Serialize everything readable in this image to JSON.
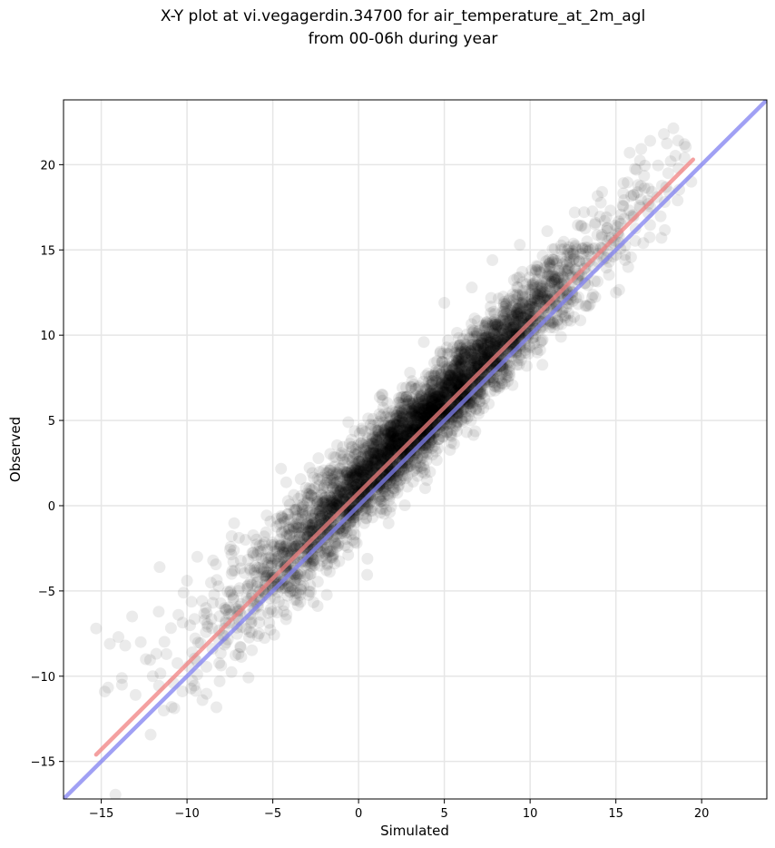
{
  "chart_data": {
    "type": "scatter",
    "title_lines": [
      "X-Y plot at vi.vegagerdin.34700 for air_temperature_at_2m_agl",
      "from 00-06h during year"
    ],
    "xlabel": "Simulated",
    "ylabel": "Observed",
    "xlim": [
      -17.2,
      23.8
    ],
    "ylim": [
      -17.2,
      23.8
    ],
    "xticks": [
      -15,
      -10,
      -5,
      0,
      5,
      10,
      15,
      20
    ],
    "yticks": [
      -15,
      -10,
      -5,
      0,
      5,
      10,
      15,
      20
    ],
    "xtick_labels": [
      "−15",
      "−10",
      "−5",
      "0",
      "5",
      "10",
      "15",
      "20"
    ],
    "ytick_labels": [
      "−15",
      "−10",
      "−5",
      "0",
      "5",
      "10",
      "15",
      "20"
    ],
    "grid": true,
    "point_color": "#000000",
    "point_alpha": 0.08,
    "scatter": {
      "description_points": [
        [
          -15.3,
          -7.2
        ],
        [
          -14.8,
          -10.9
        ],
        [
          -14.5,
          -8.1
        ],
        [
          -14.0,
          -7.7
        ],
        [
          -13.8,
          -10.1
        ],
        [
          -13.6,
          -8.2
        ],
        [
          -13.2,
          -6.5
        ],
        [
          -13.0,
          -11.1
        ],
        [
          -12.7,
          -8.0
        ],
        [
          -12.4,
          -9.0
        ],
        [
          -12.0,
          -10.0
        ],
        [
          -11.6,
          -3.6
        ],
        [
          -11.2,
          -8.7
        ],
        [
          -10.9,
          -11.8
        ],
        [
          -10.5,
          -6.4
        ],
        [
          -10.2,
          -5.1
        ],
        [
          -10.0,
          -4.4
        ],
        [
          -9.7,
          -8.6
        ],
        [
          -9.4,
          -3.0
        ],
        [
          -9.1,
          -11.4
        ],
        [
          -8.8,
          -7.1
        ],
        [
          -8.5,
          -5.7
        ],
        [
          -8.1,
          -10.3
        ],
        [
          -7.8,
          -6.0
        ],
        [
          -7.4,
          -4.0
        ],
        [
          -7.0,
          -8.7
        ],
        [
          -6.6,
          -2.0
        ],
        [
          -6.2,
          -5.2
        ],
        [
          -5.8,
          -7.5
        ],
        [
          -5.4,
          -3.1
        ],
        [
          -5.0,
          -4.9
        ],
        [
          -4.6,
          -1.1
        ],
        [
          -4.2,
          -6.4
        ],
        [
          -3.8,
          -2.6
        ],
        [
          -3.4,
          -4.0
        ],
        [
          -3.0,
          0.2
        ],
        [
          -2.6,
          -3.2
        ],
        [
          -2.2,
          -0.6
        ],
        [
          -1.8,
          1.5
        ],
        [
          -1.4,
          -3.4
        ],
        [
          -1.0,
          0.8
        ],
        [
          -0.6,
          4.9
        ],
        [
          -0.2,
          -1.7
        ],
        [
          0.2,
          2.6
        ],
        [
          0.6,
          0.1
        ],
        [
          1.0,
          4.0
        ],
        [
          1.4,
          6.5
        ],
        [
          1.8,
          1.2
        ],
        [
          2.2,
          5.3
        ],
        [
          2.6,
          3.0
        ],
        [
          3.0,
          7.8
        ],
        [
          3.4,
          2.2
        ],
        [
          3.8,
          9.6
        ],
        [
          4.2,
          4.2
        ],
        [
          4.6,
          6.8
        ],
        [
          5.0,
          11.9
        ],
        [
          5.4,
          3.7
        ],
        [
          5.8,
          8.6
        ],
        [
          6.2,
          6.1
        ],
        [
          6.6,
          12.8
        ],
        [
          7.0,
          5.4
        ],
        [
          7.4,
          10.6
        ],
        [
          7.8,
          14.4
        ],
        [
          8.2,
          7.0
        ],
        [
          8.6,
          11.8
        ],
        [
          9.0,
          9.3
        ],
        [
          9.4,
          15.3
        ],
        [
          9.8,
          8.2
        ],
        [
          10.2,
          13.0
        ],
        [
          10.6,
          10.8
        ],
        [
          11.0,
          16.1
        ],
        [
          11.4,
          12.2
        ],
        [
          11.8,
          9.9
        ],
        [
          12.2,
          15.0
        ],
        [
          12.6,
          17.2
        ],
        [
          13.0,
          13.5
        ],
        [
          13.4,
          11.7
        ],
        [
          13.8,
          16.6
        ],
        [
          14.2,
          18.4
        ],
        [
          14.6,
          14.3
        ],
        [
          15.0,
          12.5
        ],
        [
          15.4,
          17.6
        ],
        [
          15.8,
          20.7
        ],
        [
          16.2,
          19.7
        ],
        [
          16.6,
          15.4
        ],
        [
          17.0,
          21.4
        ],
        [
          17.4,
          18.1
        ],
        [
          17.8,
          21.8
        ],
        [
          18.2,
          20.2
        ],
        [
          18.6,
          17.9
        ],
        [
          19.0,
          20.4
        ],
        [
          19.4,
          19.0
        ]
      ],
      "cloud_count": 4200
    },
    "lines": [
      {
        "name": "regression",
        "color": "#f08080",
        "alpha": 0.75,
        "x": [
          -15.3,
          19.5
        ],
        "y": [
          -14.6,
          20.3
        ]
      },
      {
        "name": "one-to-one",
        "color": "#8080f0",
        "alpha": 0.75,
        "x": [
          -17.2,
          23.8
        ],
        "y": [
          -17.2,
          23.8
        ]
      }
    ]
  }
}
